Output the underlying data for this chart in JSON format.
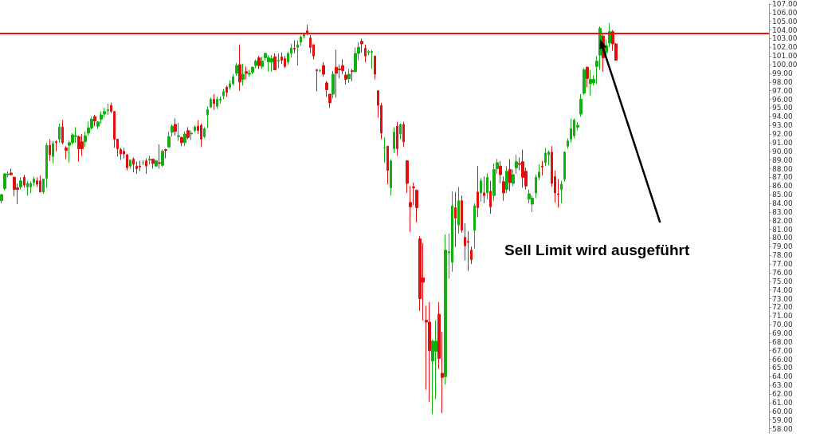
{
  "chart_data": {
    "type": "candlestick",
    "categories": [
      null,
      null,
      null,
      null,
      null,
      null,
      null,
      null,
      null,
      null,
      null,
      null,
      null,
      null,
      null,
      null,
      null,
      null,
      null,
      null,
      null,
      null,
      null,
      null,
      null,
      null,
      null,
      null,
      null,
      null,
      null,
      null,
      null,
      null,
      null,
      null,
      null,
      null,
      null,
      null,
      null,
      null,
      null,
      null,
      null,
      null,
      null,
      null,
      null,
      null,
      null,
      null,
      null,
      null,
      null,
      null,
      null,
      null,
      null,
      null,
      null,
      null,
      null,
      null,
      null,
      null,
      null,
      null,
      null,
      null,
      null,
      null,
      null,
      null,
      null,
      null,
      null,
      null,
      null,
      null,
      null,
      null,
      null,
      null,
      null,
      null,
      null,
      null,
      null,
      null,
      null,
      null,
      null,
      null,
      null,
      null,
      null,
      null,
      null,
      null,
      null,
      null,
      null,
      null,
      null,
      null,
      null,
      null,
      null,
      null,
      null,
      null,
      null,
      null,
      null,
      null,
      null,
      null,
      null,
      null,
      null,
      null,
      null,
      null,
      null,
      null,
      null,
      null,
      null,
      null,
      null,
      null,
      null,
      null,
      null,
      null,
      null,
      null,
      null,
      null,
      null,
      null,
      null,
      null,
      null,
      null,
      null,
      null,
      null,
      null,
      null,
      null,
      null,
      null,
      null,
      null,
      null,
      null,
      null,
      null,
      null,
      null,
      null,
      null,
      null,
      null,
      null,
      null,
      null,
      null,
      null,
      null,
      null,
      null,
      null,
      null,
      null,
      null,
      null,
      null,
      null,
      null,
      null,
      null,
      null,
      null,
      null,
      null,
      null,
      null,
      null,
      null,
      null,
      null,
      null,
      null,
      null,
      null,
      null,
      null,
      null,
      null,
      null,
      null,
      null,
      null,
      null,
      null,
      null,
      null,
      null,
      null,
      null,
      null,
      null,
      null,
      null,
      null,
      null,
      null,
      null,
      null,
      null,
      null,
      null,
      null,
      null,
      null,
      null,
      null,
      null,
      null,
      null,
      null,
      null,
      null,
      null,
      null,
      null
    ],
    "ohlc": [
      [
        84.3,
        85.1,
        84.0,
        85.0
      ],
      [
        85.7,
        87.5,
        85.5,
        87.4
      ],
      [
        87.3,
        87.7,
        87.0,
        87.4
      ],
      [
        87.5,
        88.0,
        87.2,
        87.3
      ],
      [
        87.0,
        87.1,
        84.8,
        85.6
      ],
      [
        85.8,
        86.3,
        83.9,
        85.6
      ],
      [
        85.9,
        87.0,
        85.6,
        86.6
      ],
      [
        87.0,
        87.3,
        85.8,
        86.1
      ],
      [
        85.9,
        86.6,
        84.9,
        86.3
      ],
      [
        85.9,
        86.5,
        85.2,
        86.3
      ],
      [
        86.4,
        87.1,
        86.0,
        86.8
      ],
      [
        86.6,
        87.0,
        85.9,
        86.2
      ],
      [
        86.6,
        87.2,
        85.3,
        85.3
      ],
      [
        85.3,
        86.8,
        85.1,
        86.8
      ],
      [
        86.9,
        91.0,
        85.8,
        90.7
      ],
      [
        90.7,
        91.4,
        88.9,
        89.6
      ],
      [
        89.4,
        91.2,
        88.6,
        90.9
      ],
      [
        91.1,
        91.3,
        90.0,
        91.0
      ],
      [
        91.4,
        93.2,
        91.0,
        92.8
      ],
      [
        92.8,
        93.6,
        90.8,
        91.0
      ],
      [
        90.4,
        90.6,
        89.1,
        90.1
      ],
      [
        90.7,
        91.2,
        88.7,
        91.0
      ],
      [
        91.0,
        92.1,
        90.8,
        91.9
      ],
      [
        91.7,
        92.8,
        91.0,
        91.8
      ],
      [
        91.7,
        91.8,
        88.8,
        90.3
      ],
      [
        91.1,
        92.0,
        89.5,
        90.3
      ],
      [
        91.1,
        92.3,
        90.5,
        91.8
      ],
      [
        92.1,
        93.4,
        91.8,
        92.7
      ],
      [
        92.7,
        94.0,
        92.5,
        93.7
      ],
      [
        94.0,
        94.2,
        92.9,
        93.5
      ],
      [
        92.9,
        93.5,
        92.6,
        93.4
      ],
      [
        93.7,
        94.6,
        93.2,
        94.2
      ],
      [
        94.3,
        95.0,
        93.9,
        94.6
      ],
      [
        94.7,
        95.5,
        94.2,
        94.8
      ],
      [
        95.3,
        95.6,
        94.4,
        94.6
      ],
      [
        94.6,
        94.6,
        90.4,
        91.4
      ],
      [
        91.4,
        91.4,
        89.4,
        90.3
      ],
      [
        90.2,
        90.4,
        89.0,
        89.7
      ],
      [
        90.0,
        90.4,
        89.2,
        89.7
      ],
      [
        89.6,
        89.7,
        87.8,
        88.1
      ],
      [
        88.3,
        89.0,
        88.0,
        89.0
      ],
      [
        89.1,
        89.3,
        87.6,
        88.5
      ],
      [
        88.3,
        88.8,
        87.4,
        88.0
      ],
      [
        88.3,
        88.9,
        87.7,
        88.2
      ],
      [
        88.7,
        89.0,
        88.4,
        88.7
      ],
      [
        88.9,
        89.2,
        87.4,
        88.3
      ],
      [
        89.0,
        89.5,
        88.5,
        89.1
      ],
      [
        89.1,
        89.1,
        88.0,
        88.6
      ],
      [
        88.3,
        89.0,
        88.2,
        88.9
      ],
      [
        88.7,
        90.8,
        88.0,
        88.6
      ],
      [
        88.4,
        90.2,
        88.2,
        90.0
      ],
      [
        90.2,
        90.3,
        89.2,
        90.1
      ],
      [
        90.5,
        92.3,
        90.4,
        91.7
      ],
      [
        92.2,
        93.1,
        91.7,
        92.9
      ],
      [
        93.1,
        93.8,
        91.8,
        92.3
      ],
      [
        91.7,
        93.3,
        91.2,
        91.8
      ],
      [
        91.6,
        91.7,
        90.6,
        91.0
      ],
      [
        91.0,
        92.3,
        90.6,
        92.0
      ],
      [
        92.4,
        92.8,
        91.4,
        91.6
      ],
      [
        92.0,
        92.4,
        91.3,
        92.1
      ],
      [
        92.4,
        93.0,
        92.2,
        92.8
      ],
      [
        92.9,
        93.6,
        92.0,
        92.4
      ],
      [
        93.0,
        93.2,
        90.5,
        91.4
      ],
      [
        91.7,
        92.8,
        91.5,
        92.6
      ],
      [
        94.2,
        95.2,
        92.7,
        94.8
      ],
      [
        95.1,
        96.2,
        95.0,
        96.0
      ],
      [
        96.0,
        96.6,
        94.8,
        95.5
      ],
      [
        95.2,
        96.3,
        94.9,
        96.0
      ],
      [
        95.9,
        96.3,
        95.5,
        96.0
      ],
      [
        96.4,
        97.2,
        96.0,
        96.9
      ],
      [
        97.4,
        97.6,
        96.3,
        96.8
      ],
      [
        97.4,
        98.2,
        97.1,
        97.8
      ],
      [
        97.8,
        98.9,
        97.6,
        98.6
      ],
      [
        99.0,
        100.2,
        98.7,
        99.9
      ],
      [
        100.0,
        102.3,
        97.0,
        98.0
      ],
      [
        98.3,
        100.1,
        97.6,
        98.9
      ],
      [
        99.2,
        99.8,
        98.3,
        99.0
      ],
      [
        98.9,
        99.4,
        98.6,
        99.0
      ],
      [
        99.1,
        99.8,
        98.9,
        99.7
      ],
      [
        99.9,
        100.6,
        99.6,
        100.4
      ],
      [
        100.8,
        101.0,
        99.5,
        99.9
      ],
      [
        99.8,
        100.9,
        99.5,
        100.4
      ],
      [
        100.8,
        101.4,
        100.5,
        101.3
      ],
      [
        100.3,
        101.1,
        99.2,
        100.8
      ],
      [
        100.3,
        101.1,
        99.2,
        100.7
      ],
      [
        100.9,
        101.3,
        99.4,
        99.4
      ],
      [
        100.4,
        101.3,
        99.6,
        100.5
      ],
      [
        100.9,
        101.4,
        100.1,
        100.5
      ],
      [
        100.7,
        101.0,
        99.6,
        99.8
      ],
      [
        100.3,
        101.5,
        100.0,
        101.3
      ],
      [
        101.3,
        102.4,
        100.8,
        101.9
      ],
      [
        101.9,
        102.8,
        101.3,
        101.8
      ],
      [
        102.0,
        102.8,
        99.9,
        102.3
      ],
      [
        102.6,
        103.4,
        102.2,
        103.2
      ],
      [
        103.3,
        103.6,
        103.0,
        103.5
      ],
      [
        103.9,
        104.6,
        103.4,
        103.6
      ],
      [
        103.1,
        103.4,
        101.3,
        102.0
      ],
      [
        102.3,
        102.3,
        100.6,
        101.0
      ],
      [
        99.4,
        99.5,
        96.9,
        99.3
      ],
      [
        99.3,
        99.5,
        99.1,
        99.3
      ],
      [
        99.9,
        100.3,
        98.6,
        98.9
      ],
      [
        97.9,
        98.1,
        96.3,
        97.1
      ],
      [
        96.6,
        96.6,
        95.0,
        95.6
      ],
      [
        96.6,
        99.3,
        96.1,
        98.9
      ],
      [
        99.7,
        101.7,
        96.2,
        99.0
      ],
      [
        99.5,
        100.0,
        98.4,
        99.4
      ],
      [
        99.9,
        100.6,
        98.9,
        99.3
      ],
      [
        98.8,
        99.2,
        97.7,
        98.3
      ],
      [
        98.4,
        99.5,
        97.9,
        98.9
      ],
      [
        99.3,
        99.5,
        98.1,
        99.2
      ],
      [
        99.2,
        102.0,
        99.1,
        101.3
      ],
      [
        101.3,
        102.6,
        100.5,
        102.0
      ],
      [
        102.7,
        103.0,
        101.4,
        102.4
      ],
      [
        101.9,
        102.3,
        100.3,
        101.0
      ],
      [
        101.4,
        101.7,
        101.1,
        101.5
      ],
      [
        101.4,
        101.7,
        99.5,
        101.5
      ],
      [
        101.0,
        101.0,
        98.3,
        98.9
      ],
      [
        97.0,
        97.0,
        93.9,
        95.3
      ],
      [
        95.3,
        95.6,
        91.4,
        92.1
      ],
      [
        90.4,
        91.6,
        88.7,
        90.4
      ],
      [
        90.6,
        90.6,
        86.2,
        87.8
      ],
      [
        85.8,
        89.1,
        84.9,
        88.9
      ],
      [
        90.3,
        92.8,
        89.8,
        92.2
      ],
      [
        92.9,
        93.4,
        89.5,
        90.3
      ],
      [
        92.0,
        93.2,
        91.4,
        93.1
      ],
      [
        93.1,
        93.4,
        90.5,
        91.1
      ],
      [
        88.9,
        89.0,
        85.2,
        86.3
      ],
      [
        84.1,
        86.0,
        80.7,
        83.6
      ],
      [
        85.9,
        86.4,
        83.8,
        85.8
      ],
      [
        85.5,
        85.6,
        81.8,
        83.5
      ],
      [
        79.9,
        80.2,
        71.6,
        73.0
      ],
      [
        75.4,
        79.4,
        70.5,
        74.9
      ],
      [
        70.5,
        72.2,
        62.5,
        70.3
      ],
      [
        70.3,
        72.6,
        61.1,
        67.0
      ],
      [
        65.8,
        68.3,
        59.7,
        68.1
      ],
      [
        66.9,
        70.5,
        61.4,
        68.1
      ],
      [
        71.2,
        72.6,
        64.9,
        66.1
      ],
      [
        64.4,
        69.2,
        59.8,
        63.9
      ],
      [
        64.0,
        80.4,
        63.1,
        78.6
      ],
      [
        78.3,
        80.5,
        75.3,
        78.4
      ],
      [
        77.2,
        85.4,
        76.1,
        83.7
      ],
      [
        83.5,
        85.3,
        79.0,
        82.3
      ],
      [
        81.5,
        85.9,
        80.5,
        84.3
      ],
      [
        84.3,
        84.9,
        80.6,
        80.9
      ],
      [
        80.1,
        81.7,
        77.4,
        79.1
      ],
      [
        79.6,
        80.8,
        76.2,
        79.5
      ],
      [
        78.6,
        79.0,
        77.0,
        77.5
      ],
      [
        80.9,
        84.0,
        78.8,
        83.7
      ],
      [
        85.3,
        88.3,
        82.4,
        83.5
      ],
      [
        85.2,
        86.9,
        84.2,
        86.6
      ],
      [
        85.2,
        87.1,
        84.0,
        84.9
      ],
      [
        85.2,
        87.5,
        84.5,
        87.0
      ],
      [
        85.4,
        86.6,
        82.8,
        83.6
      ],
      [
        84.9,
        88.6,
        84.3,
        87.9
      ],
      [
        88.0,
        89.1,
        87.4,
        88.7
      ],
      [
        88.3,
        88.9,
        86.3,
        87.3
      ],
      [
        86.5,
        87.1,
        84.3,
        85.2
      ],
      [
        85.6,
        88.3,
        85.2,
        87.7
      ],
      [
        87.9,
        89.1,
        85.4,
        86.4
      ],
      [
        86.3,
        87.9,
        86.0,
        87.3
      ],
      [
        88.1,
        89.6,
        87.4,
        88.8
      ],
      [
        88.6,
        89.3,
        87.8,
        88.5
      ],
      [
        88.8,
        90.2,
        85.8,
        87.0
      ],
      [
        87.7,
        88.1,
        85.6,
        86.0
      ],
      [
        84.5,
        85.6,
        84.0,
        85.1
      ],
      [
        83.9,
        84.9,
        83.0,
        84.6
      ],
      [
        85.2,
        87.3,
        84.6,
        87.0
      ],
      [
        87.0,
        88.5,
        86.7,
        87.6
      ],
      [
        88.3,
        88.9,
        87.2,
        88.2
      ],
      [
        88.7,
        90.4,
        88.3,
        89.8
      ],
      [
        89.6,
        90.1,
        88.4,
        89.9
      ],
      [
        89.9,
        90.6,
        85.9,
        86.3
      ],
      [
        87.1,
        87.8,
        84.1,
        85.2
      ],
      [
        85.1,
        86.8,
        83.5,
        85.0
      ],
      [
        85.6,
        86.6,
        84.0,
        86.2
      ],
      [
        86.8,
        90.0,
        86.5,
        89.9
      ],
      [
        90.6,
        91.5,
        90.3,
        91.2
      ],
      [
        91.4,
        93.8,
        91.0,
        92.6
      ],
      [
        91.8,
        93.8,
        91.5,
        93.6
      ],
      [
        92.8,
        93.4,
        92.4,
        93.0
      ],
      [
        94.3,
        96.6,
        94.0,
        96.0
      ],
      [
        96.7,
        99.6,
        96.5,
        99.4
      ],
      [
        99.7,
        99.8,
        97.4,
        98.4
      ],
      [
        97.8,
        99.4,
        96.4,
        98.3
      ],
      [
        97.9,
        98.8,
        97.6,
        98.3
      ],
      [
        99.8,
        101.0,
        97.8,
        100.4
      ],
      [
        101.1,
        104.4,
        99.4,
        104.2
      ],
      [
        103.3,
        103.5,
        99.2,
        100.8
      ],
      [
        101.4,
        102.9,
        101.0,
        102.2
      ],
      [
        102.5,
        104.8,
        102.0,
        103.8
      ],
      [
        103.8,
        104.0,
        101.6,
        102.4
      ],
      [
        102.4,
        102.5,
        100.5,
        100.5
      ],
      null,
      null,
      null,
      null,
      null,
      null,
      null,
      null,
      null,
      null,
      null,
      null,
      null,
      null,
      null,
      null,
      null,
      null,
      null,
      null,
      null,
      null,
      null,
      null,
      null,
      null,
      null,
      null,
      null,
      null,
      null,
      null,
      null,
      null,
      null,
      null,
      null,
      null,
      null,
      null,
      null,
      null,
      null,
      null,
      null,
      null,
      null
    ],
    "colors": [
      "#10b010",
      "#10b010",
      "#10b010",
      "#e01010",
      "#e01010",
      "#e01010",
      "#10b010",
      "#e01010",
      "#10b010",
      "#10b010",
      "#10b010",
      "#e01010",
      "#e01010",
      "#10b010",
      "#10b010",
      "#e01010",
      "#10b010",
      "#e01010",
      "#10b010",
      "#e01010",
      "#e01010",
      "#10b010",
      "#10b010",
      "#10b010",
      "#e01010",
      "#e01010",
      "#10b010",
      "#10b010",
      "#10b010",
      "#e01010",
      "#10b010",
      "#10b010",
      "#10b010",
      "#10b010",
      "#e01010",
      "#e01010",
      "#e01010",
      "#e01010",
      "#e01010",
      "#e01010",
      "#10b010",
      "#e01010",
      "#e01010",
      "#e01010",
      "#10b010",
      "#e01010",
      "#10b010",
      "#e01010",
      "#10b010",
      "#e01010",
      "#10b010",
      "#e01010",
      "#10b010",
      "#10b010",
      "#e01010",
      "#10b010",
      "#e01010",
      "#10b010",
      "#e01010",
      "#10b010",
      "#10b010",
      "#e01010",
      "#e01010",
      "#10b010",
      "#10b010",
      "#10b010",
      "#e01010",
      "#10b010",
      "#10b010",
      "#10b010",
      "#e01010",
      "#10b010",
      "#10b010",
      "#10b010",
      "#e01010",
      "#10b010",
      "#e01010",
      "#10b010",
      "#10b010",
      "#10b010",
      "#e01010",
      "#10b010",
      "#10b010",
      "#10b010",
      "#10b010",
      "#e01010",
      "#10b010",
      "#e01010",
      "#e01010",
      "#10b010",
      "#10b010",
      "#e01010",
      "#10b010",
      "#10b010",
      "#10b010",
      "#e01010",
      "#e01010",
      "#e01010",
      "#e01010",
      "#10b010",
      "#e01010",
      "#e01010",
      "#e01010",
      "#10b010",
      "#e01010",
      "#e01010",
      "#e01010",
      "#e01010",
      "#10b010",
      "#e01010",
      "#10b010",
      "#10b010",
      "#e01010",
      "#e01010",
      "#10b010",
      "#10b010",
      "#e01010",
      "#e01010",
      "#e01010",
      "#10b010",
      "#e01010",
      "#10b010",
      "#10b010",
      "#e01010",
      "#10b010",
      "#e01010",
      "#e01010",
      "#e01010",
      "#e01010",
      "#e01010",
      "#e01010",
      "#e01010",
      "#e01010",
      "#e01010",
      "#10b010",
      "#10b010",
      "#e01010",
      "#e01010",
      "#10b010",
      "#10b010",
      "#10b010",
      "#e01010",
      "#10b010",
      "#e01010",
      "#e01010",
      "#e01010",
      "#e01010",
      "#10b010",
      "#e01010",
      "#10b010",
      "#e01010",
      "#10b010",
      "#e01010",
      "#10b010",
      "#10b010",
      "#e01010",
      "#e01010",
      "#10b010",
      "#e01010",
      "#10b010",
      "#10b010",
      "#e01010",
      "#e01010",
      "#e01010",
      "#10b010",
      "#10b010",
      "#10b010",
      "#10b010",
      "#e01010",
      "#10b010",
      "#10b010",
      "#e01010",
      "#e01010",
      "#e01010",
      "#10b010",
      "#10b010",
      "#10b010",
      "#10b010",
      "#10b010",
      "#10b010",
      "#10b010",
      "#10b010",
      "#e01010",
      "#10b010",
      "#10b010",
      "#10b010",
      "#10b010",
      "#e01010",
      "#10b010",
      "#10b010",
      "#e01010",
      "#e01010",
      null,
      null,
      null,
      null,
      null,
      null,
      null,
      null,
      null,
      null,
      null,
      null,
      null,
      null,
      null,
      null,
      null,
      null,
      null,
      null,
      null,
      null,
      null,
      null,
      null,
      null,
      null,
      null,
      null,
      null,
      null,
      null,
      null,
      null,
      null,
      null,
      null,
      null,
      null,
      null,
      null,
      null,
      null,
      null,
      null,
      null,
      null
    ],
    "ylim": [
      57.5,
      107
    ],
    "yticks": [
      {
        "value": 58,
        "label": "58.00"
      },
      {
        "value": 59,
        "label": "59.00"
      },
      {
        "value": 60,
        "label": "60.00"
      },
      {
        "value": 61,
        "label": "61.00"
      },
      {
        "value": 62,
        "label": "62.00"
      },
      {
        "value": 63,
        "label": "63.00"
      },
      {
        "value": 64,
        "label": "64.00"
      },
      {
        "value": 65,
        "label": "65.00"
      },
      {
        "value": 66,
        "label": "66.00"
      },
      {
        "value": 67,
        "label": "67.00"
      },
      {
        "value": 68,
        "label": "68.00"
      },
      {
        "value": 69,
        "label": "69.00"
      },
      {
        "value": 70,
        "label": "70.00"
      },
      {
        "value": 71,
        "label": "71.00"
      },
      {
        "value": 72,
        "label": "72.00"
      },
      {
        "value": 73,
        "label": "73.00"
      },
      {
        "value": 74,
        "label": "74.00"
      },
      {
        "value": 75,
        "label": "75.00"
      },
      {
        "value": 76,
        "label": "76.00"
      },
      {
        "value": 77,
        "label": "77.00"
      },
      {
        "value": 78,
        "label": "78.00"
      },
      {
        "value": 79,
        "label": "79.00"
      },
      {
        "value": 80,
        "label": "80.00"
      },
      {
        "value": 81,
        "label": "81.00"
      },
      {
        "value": 82,
        "label": "82.00"
      },
      {
        "value": 83,
        "label": "83.00"
      },
      {
        "value": 84,
        "label": "84.00"
      },
      {
        "value": 85,
        "label": "85.00"
      },
      {
        "value": 86,
        "label": "86.00"
      },
      {
        "value": 87,
        "label": "87.00"
      },
      {
        "value": 88,
        "label": "88.00"
      },
      {
        "value": 89,
        "label": "89.00"
      },
      {
        "value": 90,
        "label": "90.00"
      },
      {
        "value": 91,
        "label": "91.00"
      },
      {
        "value": 92,
        "label": "92.00"
      },
      {
        "value": 93,
        "label": "93.00"
      },
      {
        "value": 94,
        "label": "94.00"
      },
      {
        "value": 95,
        "label": "95.00"
      },
      {
        "value": 96,
        "label": "96.00"
      },
      {
        "value": 97,
        "label": "97.00"
      },
      {
        "value": 98,
        "label": "98.00"
      },
      {
        "value": 99,
        "label": "99.00"
      },
      {
        "value": 100,
        "label": "100.00"
      },
      {
        "value": 101,
        "label": "101.00"
      },
      {
        "value": 102,
        "label": "102.00"
      },
      {
        "value": 103,
        "label": "103.00"
      },
      {
        "value": 104,
        "label": "104.00"
      },
      {
        "value": 105,
        "label": "105.00"
      },
      {
        "value": 106,
        "label": "106.00"
      },
      {
        "value": 107,
        "label": "107.00"
      }
    ],
    "ref_lines": [
      {
        "axis": "y",
        "value": 103.6,
        "label": null,
        "color": "#f01010"
      }
    ],
    "annotations": [
      "Sell Limit wird ausgeführt"
    ],
    "tick_labels": "y",
    "grid": false
  }
}
